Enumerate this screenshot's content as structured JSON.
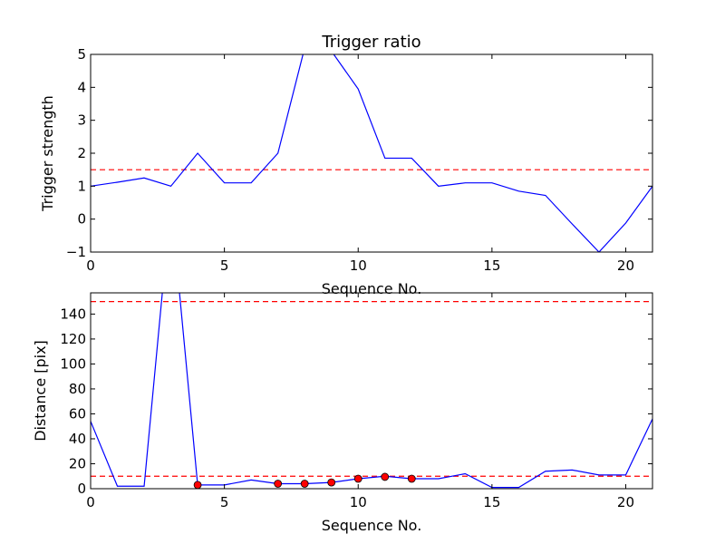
{
  "chart_data": [
    {
      "type": "line",
      "title": "Trigger ratio",
      "xlabel": "Sequence No.",
      "ylabel": "Trigger strength",
      "xlim": [
        0,
        21
      ],
      "ylim": [
        -1,
        5
      ],
      "xticks": [
        0,
        5,
        10,
        15,
        20
      ],
      "yticks": [
        -1,
        0,
        1,
        2,
        3,
        4,
        5
      ],
      "grid": false,
      "series": [
        {
          "color": "#0000ff",
          "style": "solid",
          "x": [
            0,
            1,
            2,
            3,
            4,
            5,
            6,
            7,
            8,
            9,
            10,
            11,
            12,
            13,
            14,
            15,
            16,
            17,
            18,
            19,
            20,
            21
          ],
          "y": [
            1.0,
            1.12,
            1.25,
            1.0,
            2.0,
            1.1,
            1.1,
            2.0,
            5.2,
            5.1,
            3.95,
            1.85,
            1.85,
            1.0,
            1.1,
            1.1,
            0.85,
            0.72,
            -0.15,
            -1.0,
            -0.12,
            1.0
          ]
        }
      ],
      "hlines": [
        {
          "y": 1.5,
          "color": "#ff0000",
          "style": "dashed"
        }
      ]
    },
    {
      "type": "line",
      "title": "",
      "xlabel": "Sequence No.",
      "ylabel": "Distance [pix]",
      "xlim": [
        0,
        21
      ],
      "ylim": [
        0,
        157
      ],
      "xticks": [
        0,
        5,
        10,
        15,
        20
      ],
      "yticks": [
        0,
        20,
        40,
        60,
        80,
        100,
        120,
        140
      ],
      "grid": false,
      "series": [
        {
          "color": "#0000ff",
          "style": "solid",
          "x": [
            0,
            1,
            2,
            3,
            4,
            5,
            6,
            7,
            8,
            9,
            10,
            11,
            12,
            13,
            14,
            15,
            16,
            17,
            18,
            19,
            20,
            21
          ],
          "y": [
            54,
            2,
            2,
            230,
            3,
            3,
            7,
            4,
            4,
            5,
            8,
            10,
            8,
            8,
            12,
            1,
            1,
            14,
            15,
            11,
            11,
            56
          ]
        },
        {
          "color": "#ff0000",
          "style": "markers",
          "x": [
            4,
            7,
            8,
            9,
            10,
            11,
            12
          ],
          "y": [
            3,
            4,
            4,
            5,
            8,
            9.5,
            8
          ]
        }
      ],
      "hlines": [
        {
          "y": 150,
          "color": "#ff0000",
          "style": "dashed"
        },
        {
          "y": 10,
          "color": "#ff0000",
          "style": "dashed"
        }
      ]
    }
  ]
}
